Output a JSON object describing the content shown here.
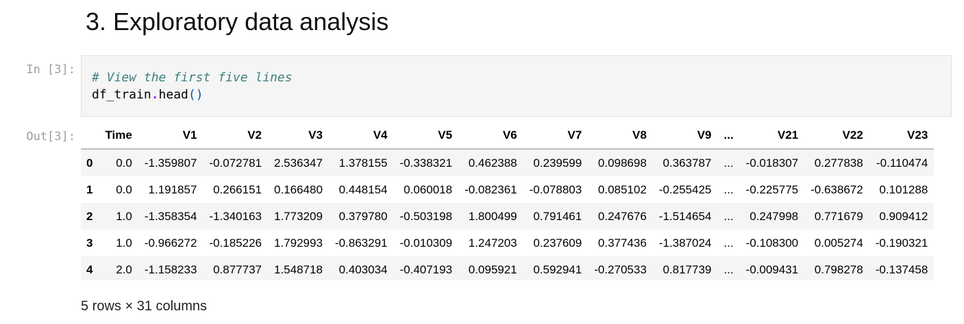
{
  "section": {
    "title": "3. Exploratory data analysis"
  },
  "cell": {
    "in_prompt": "In [3]:",
    "out_prompt": "Out[3]:",
    "code": {
      "comment": "# View the first five lines",
      "obj": "df_train",
      "dot": ".",
      "method": "head",
      "parens": "()"
    }
  },
  "dataframe": {
    "columns": [
      "Time",
      "V1",
      "V2",
      "V3",
      "V4",
      "V5",
      "V6",
      "V7",
      "V8",
      "V9",
      "...",
      "V21",
      "V22",
      "V23"
    ],
    "rows": [
      {
        "index": "0",
        "cells": [
          "0.0",
          "-1.359807",
          "-0.072781",
          "2.536347",
          "1.378155",
          "-0.338321",
          "0.462388",
          "0.239599",
          "0.098698",
          "0.363787",
          "...",
          "-0.018307",
          "0.277838",
          "-0.110474"
        ]
      },
      {
        "index": "1",
        "cells": [
          "0.0",
          "1.191857",
          "0.266151",
          "0.166480",
          "0.448154",
          "0.060018",
          "-0.082361",
          "-0.078803",
          "0.085102",
          "-0.255425",
          "...",
          "-0.225775",
          "-0.638672",
          "0.101288"
        ]
      },
      {
        "index": "2",
        "cells": [
          "1.0",
          "-1.358354",
          "-1.340163",
          "1.773209",
          "0.379780",
          "-0.503198",
          "1.800499",
          "0.791461",
          "0.247676",
          "-1.514654",
          "...",
          "0.247998",
          "0.771679",
          "0.909412"
        ]
      },
      {
        "index": "3",
        "cells": [
          "1.0",
          "-0.966272",
          "-0.185226",
          "1.792993",
          "-0.863291",
          "-0.010309",
          "1.247203",
          "0.237609",
          "0.377436",
          "-1.387024",
          "...",
          "-0.108300",
          "0.005274",
          "-0.190321"
        ]
      },
      {
        "index": "4",
        "cells": [
          "2.0",
          "-1.158233",
          "0.877737",
          "1.548718",
          "0.403034",
          "-0.407193",
          "0.095921",
          "0.592941",
          "-0.270533",
          "0.817739",
          "...",
          "-0.009431",
          "0.798278",
          "-0.137458"
        ]
      }
    ],
    "shape_note": "5 rows × 31 columns"
  }
}
